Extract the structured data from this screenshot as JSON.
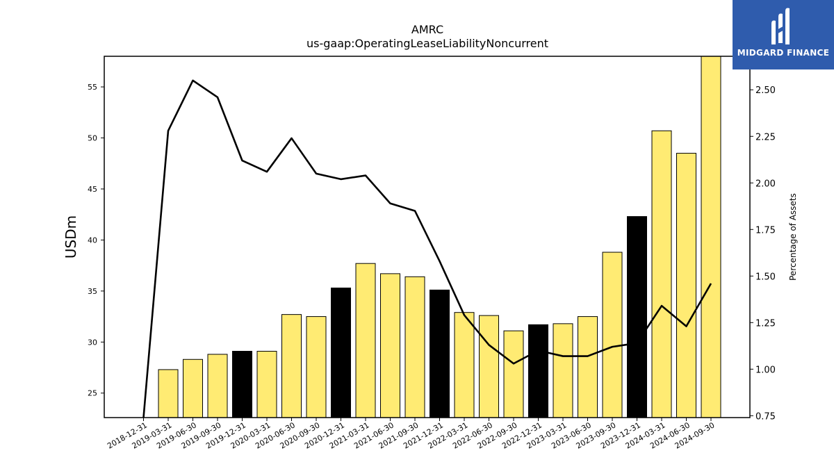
{
  "chart_data": {
    "type": "bar",
    "title": "AMRC",
    "subtitle": "us-gaap:OperatingLeaseLiabilityNoncurrent",
    "ylabel": "USDm",
    "ylabel_right": "Percentage of Assets",
    "categories": [
      "2018-12-31",
      "2019-03-31",
      "2019-06-30",
      "2019-09-30",
      "2019-12-31",
      "2020-03-31",
      "2020-06-30",
      "2020-09-30",
      "2020-12-31",
      "2021-03-31",
      "2021-06-30",
      "2021-09-30",
      "2021-12-31",
      "2022-03-31",
      "2022-06-30",
      "2022-09-30",
      "2022-12-31",
      "2023-03-31",
      "2023-06-30",
      "2023-09-30",
      "2023-12-31",
      "2024-03-31",
      "2024-06-30",
      "2024-09-30"
    ],
    "ylim": [
      22.6,
      58
    ],
    "yticks": [
      25,
      30,
      35,
      40,
      45,
      50,
      55
    ],
    "ylim_right": [
      0.74,
      2.68
    ],
    "yticks_right": [
      "0.75",
      "1.00",
      "1.25",
      "1.50",
      "1.75",
      "2.00",
      "2.25",
      "2.50"
    ],
    "series": [
      {
        "kind": "bar",
        "values": [
          null,
          27.3,
          28.3,
          28.8,
          29.1,
          29.1,
          32.7,
          32.5,
          35.3,
          37.7,
          36.7,
          36.4,
          35.1,
          32.9,
          32.6,
          31.1,
          31.7,
          31.8,
          32.5,
          38.8,
          42.3,
          50.7,
          48.5,
          58.0
        ],
        "annual_flags": [
          false,
          false,
          false,
          false,
          true,
          false,
          false,
          false,
          true,
          false,
          false,
          false,
          true,
          false,
          false,
          false,
          true,
          false,
          false,
          false,
          true,
          false,
          false,
          false
        ]
      },
      {
        "kind": "line",
        "axis": "right",
        "values": [
          0.74,
          2.28,
          2.55,
          2.46,
          2.12,
          2.06,
          2.24,
          2.05,
          2.02,
          2.04,
          1.89,
          1.85,
          1.58,
          1.29,
          1.13,
          1.03,
          1.1,
          1.07,
          1.07,
          1.12,
          1.14,
          1.34,
          1.23,
          1.46
        ]
      }
    ],
    "colors": {
      "bar": "#ffeb73",
      "bar_annual": "#000000",
      "line": "#000000",
      "brand": "#2f5cad"
    }
  },
  "logo": {
    "text": "MIDGARD FINANCE",
    "icon": "midgard-logo-icon"
  }
}
